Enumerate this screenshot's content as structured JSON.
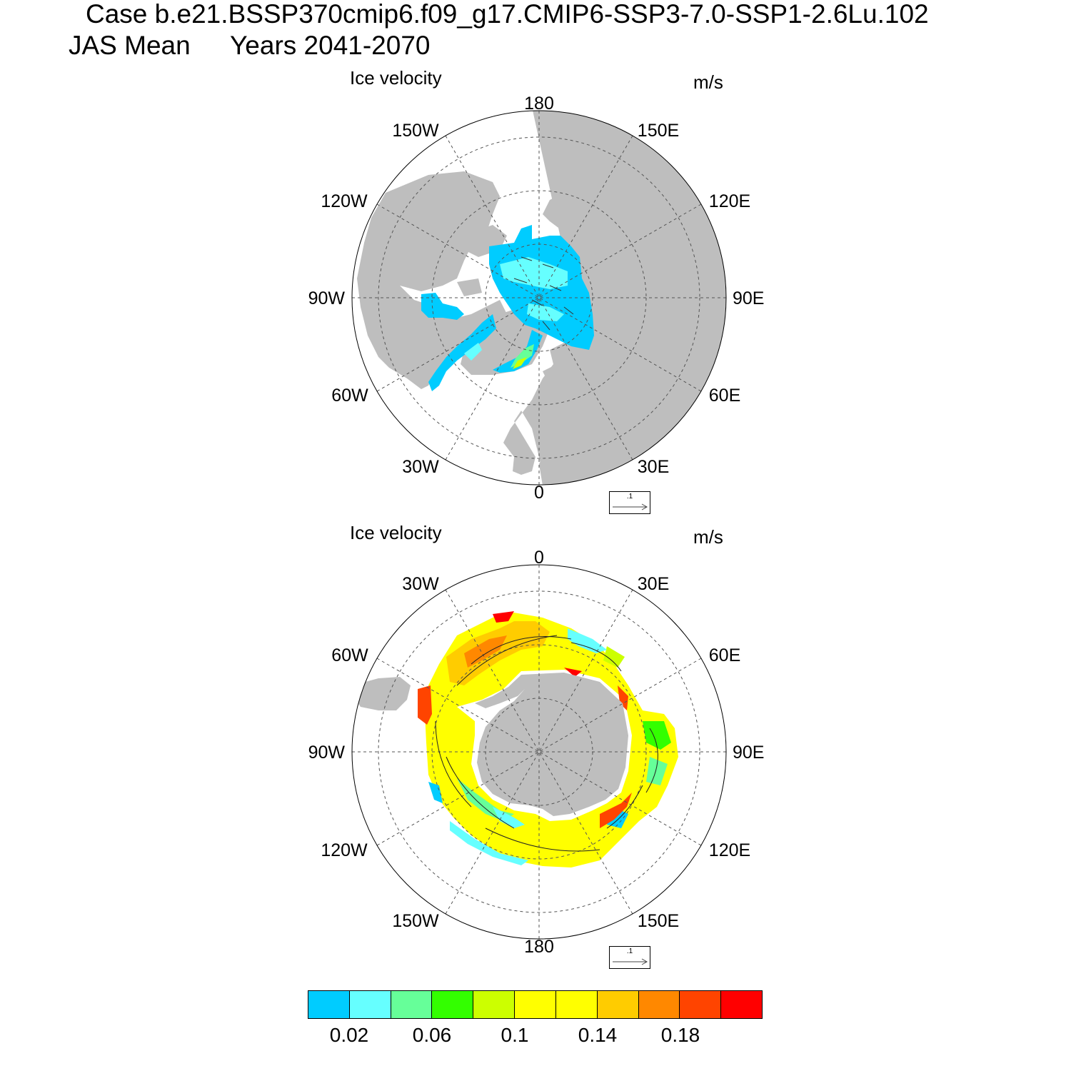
{
  "title": {
    "case": "Case b.e21.BSSP370cmip6.f09_g17.CMIP6-SSP3-7.0-SSP1-2.6Lu.102",
    "season": "JAS Mean",
    "years": "Years 2041-2070"
  },
  "panels": [
    {
      "hemisphere": "north",
      "left_label": "Ice velocity",
      "right_label": "m/s",
      "lon_labels": {
        "top": "180",
        "bottom": "0",
        "left": "90W",
        "right": "90E",
        "upper_left_1": "150W",
        "upper_left_2": "120W",
        "upper_right_1": "150E",
        "upper_right_2": "120E",
        "lower_left_1": "60W",
        "lower_left_2": "30W",
        "lower_right_1": "60E",
        "lower_right_2": "30E"
      },
      "ref_vector": ".1"
    },
    {
      "hemisphere": "south",
      "left_label": "Ice velocity",
      "right_label": "m/s",
      "lon_labels": {
        "top": "0",
        "bottom": "180",
        "left": "90W",
        "right": "90E",
        "upper_left_1": "30W",
        "upper_left_2": "60W",
        "upper_right_1": "30E",
        "upper_right_2": "60E",
        "lower_left_1": "120W",
        "lower_left_2": "150W",
        "lower_right_1": "120E",
        "lower_right_2": "150E"
      },
      "ref_vector": ".1"
    }
  ],
  "colorbar": {
    "colors": [
      "#00ccff",
      "#66ffff",
      "#66ff99",
      "#33ff00",
      "#ccff00",
      "#ffff00",
      "#ffff00",
      "#ffcc00",
      "#ff8800",
      "#ff4400",
      "#ff0000"
    ],
    "labels": [
      "0.02",
      "0.06",
      "0.1",
      "0.14",
      "0.18"
    ]
  },
  "palette": {
    "land": "#bebebe",
    "ice_low": "#00ccff",
    "ice_mid": "#ffff00"
  }
}
